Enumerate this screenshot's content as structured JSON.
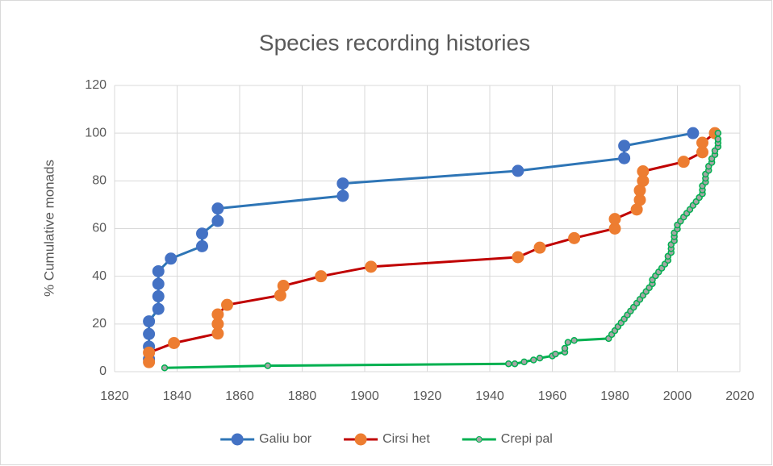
{
  "chart_data": {
    "type": "line",
    "title": "Species recording histories",
    "y_label": "% Cumulative monads",
    "xlim": [
      1820,
      2020
    ],
    "xticks": [
      1820,
      1840,
      1860,
      1880,
      1900,
      1920,
      1940,
      1960,
      1980,
      2000,
      2020
    ],
    "ylim": [
      0,
      120
    ],
    "yticks": [
      0,
      20,
      40,
      60,
      80,
      100,
      120
    ],
    "grid": true,
    "legend": "bottom",
    "series": [
      {
        "name": "Galiu bor",
        "color": "#2e75b6",
        "marker_color": "#4472c4",
        "marker": "large",
        "x": [
          1831,
          1831,
          1831,
          1831,
          1834,
          1834,
          1834,
          1834,
          1838,
          1848,
          1848,
          1853,
          1853,
          1893,
          1893,
          1949,
          1983,
          1983,
          2005
        ],
        "values": [
          5.3,
          10.5,
          15.8,
          21.1,
          26.3,
          31.6,
          36.8,
          42.1,
          47.4,
          52.6,
          57.9,
          63.2,
          68.4,
          73.7,
          78.9,
          84.2,
          89.5,
          94.7,
          100
        ]
      },
      {
        "name": "Cirsi het",
        "color": "#c00000",
        "marker_color": "#ed7d31",
        "marker": "large",
        "x": [
          1831,
          1831,
          1839,
          1853,
          1853,
          1853,
          1856,
          1873,
          1874,
          1886,
          1902,
          1949,
          1956,
          1967,
          1980,
          1980,
          1987,
          1988,
          1988,
          1989,
          1989,
          2002,
          2008,
          2008,
          2012
        ],
        "values": [
          4,
          8,
          12,
          16,
          20,
          24,
          28,
          32,
          36,
          40,
          44,
          48,
          52,
          56,
          60,
          64,
          68,
          72,
          76,
          80,
          84,
          88,
          92,
          96,
          100
        ]
      },
      {
        "name": "Crepi pal",
        "color": "#00b050",
        "marker_color": "#a5a5a5",
        "marker": "small",
        "x": [
          1836,
          1869,
          1946,
          1948,
          1951,
          1954,
          1956,
          1960,
          1961,
          1964,
          1964,
          1965,
          1967,
          1978,
          1979,
          1980,
          1981,
          1982,
          1983,
          1984,
          1985,
          1986,
          1987,
          1988,
          1989,
          1990,
          1991,
          1992,
          1992,
          1993,
          1994,
          1995,
          1996,
          1997,
          1997,
          1998,
          1998,
          1998,
          1999,
          1999,
          1999,
          2000,
          2000,
          2001,
          2002,
          2003,
          2004,
          2005,
          2006,
          2007,
          2008,
          2008,
          2008,
          2009,
          2009,
          2009,
          2010,
          2010,
          2011,
          2011,
          2012,
          2012,
          2013,
          2013,
          2013,
          2013
        ],
        "values": [
          1.6,
          2.5,
          3.3,
          3.3,
          4.1,
          4.9,
          5.7,
          6.6,
          7.4,
          8.2,
          9.8,
          12.3,
          13.1,
          13.9,
          15.6,
          17.2,
          18.9,
          20.5,
          22.1,
          23.8,
          25.4,
          27.0,
          28.7,
          30.3,
          32.0,
          33.6,
          35.2,
          36.9,
          38.5,
          40.2,
          41.8,
          43.4,
          45.1,
          46.7,
          48.4,
          50.0,
          51.6,
          53.3,
          54.9,
          56.6,
          58.2,
          59.8,
          61.5,
          63.1,
          64.8,
          66.4,
          68.0,
          69.7,
          71.3,
          73.0,
          74.6,
          76.2,
          77.9,
          79.5,
          81.1,
          82.8,
          84.4,
          86.1,
          87.7,
          89.3,
          91.0,
          92.6,
          94.3,
          95.9,
          97.5,
          100
        ]
      }
    ]
  }
}
